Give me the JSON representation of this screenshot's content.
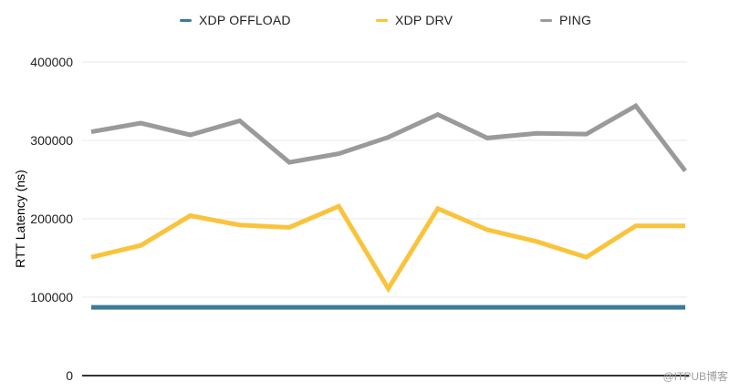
{
  "watermark": {
    "text": "@ITPUB博客"
  },
  "chart_data": {
    "type": "line",
    "title": "",
    "xlabel": "",
    "ylabel": "RTT Latency (ns)",
    "x": [
      1,
      2,
      3,
      4,
      5,
      6,
      7,
      8,
      9,
      10,
      11,
      12,
      13
    ],
    "ylim": [
      0,
      400000
    ],
    "yticks": [
      0,
      100000,
      200000,
      300000,
      400000
    ],
    "ytick_labels": [
      "0",
      "100000",
      "200000",
      "300000",
      "400000"
    ],
    "grid": true,
    "legend_position": "top",
    "axis_color": "#333333",
    "gridline_color": "#e8e8e8",
    "series": [
      {
        "name": "XDP OFFLOAD",
        "color": "#3D7A99",
        "values": [
          87000,
          87000,
          87000,
          87000,
          87000,
          87000,
          87000,
          87000,
          87000,
          87000,
          87000,
          87000,
          87000
        ]
      },
      {
        "name": "XDP DRV",
        "color": "#F9C33C",
        "values": [
          151000,
          166000,
          204000,
          192000,
          189000,
          216000,
          111000,
          213000,
          186000,
          171000,
          151000,
          191000,
          191000
        ]
      },
      {
        "name": "PING",
        "color": "#9A9A9A",
        "values": [
          311000,
          322000,
          307000,
          325000,
          272000,
          283000,
          304000,
          333000,
          303000,
          309000,
          308000,
          344000,
          261000
        ]
      }
    ]
  }
}
